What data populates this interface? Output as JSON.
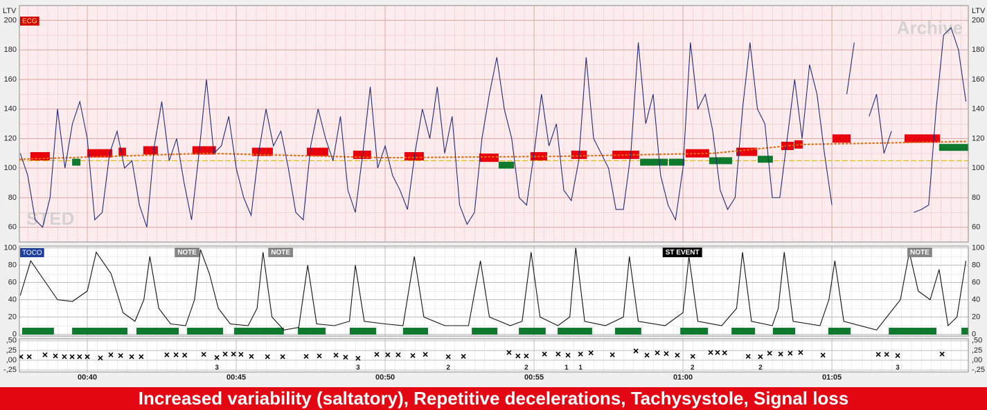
{
  "chart_data": [
    {
      "type": "line",
      "label": "ECG",
      "axis_label": "LTV",
      "watermarks": [
        "Archive",
        "STED"
      ],
      "xlim": [
        37.72,
        69.58
      ],
      "ylim": [
        50,
        210
      ],
      "yticks": [
        60,
        80,
        100,
        120,
        140,
        160,
        180,
        200
      ],
      "color": "#1f2b7a",
      "x": [
        37.75,
        38,
        38.25,
        38.5,
        38.75,
        39,
        39.25,
        39.5,
        39.75,
        40,
        40.25,
        40.5,
        40.75,
        41,
        41.25,
        41.5,
        41.75,
        42,
        42.25,
        42.5,
        42.75,
        43,
        43.25,
        43.5,
        43.75,
        44,
        44.25,
        44.5,
        44.75,
        45,
        45.25,
        45.5,
        45.75,
        46,
        46.25,
        46.5,
        46.75,
        47,
        47.25,
        47.5,
        47.75,
        48,
        48.25,
        48.5,
        48.75,
        49,
        49.25,
        49.5,
        49.75,
        50,
        50.25,
        50.5,
        50.75,
        51,
        51.25,
        51.5,
        51.75,
        52,
        52.25,
        52.5,
        52.75,
        53,
        53.25,
        53.5,
        53.75,
        54,
        54.25,
        54.5,
        54.75,
        55,
        55.25,
        55.5,
        55.75,
        56,
        56.25,
        56.5,
        56.75,
        57,
        57.25,
        57.5,
        57.75,
        58,
        58.25,
        58.5,
        58.75,
        59,
        59.25,
        59.5,
        59.75,
        60,
        60.25,
        60.5,
        60.75,
        61,
        61.25,
        61.5,
        61.75,
        62,
        62.25,
        62.5,
        62.75,
        63,
        63.25,
        63.5,
        63.75,
        64,
        64.25,
        64.5,
        64.75,
        65,
        65.25,
        65.5,
        65.75,
        66,
        66.25,
        66.5,
        66.75,
        67,
        67.25,
        67.5,
        67.75,
        68,
        68.25,
        68.5,
        68.75,
        69,
        69.25,
        69.5
      ],
      "values": [
        110,
        95,
        65,
        60,
        80,
        140,
        100,
        130,
        145,
        120,
        65,
        70,
        110,
        125,
        100,
        105,
        75,
        60,
        115,
        145,
        105,
        120,
        90,
        65,
        110,
        160,
        110,
        115,
        135,
        100,
        80,
        68,
        110,
        140,
        115,
        125,
        100,
        70,
        65,
        115,
        140,
        120,
        105,
        135,
        85,
        70,
        110,
        155,
        100,
        115,
        95,
        85,
        72,
        110,
        140,
        120,
        155,
        110,
        135,
        75,
        62,
        70,
        120,
        150,
        175,
        140,
        120,
        80,
        75,
        110,
        150,
        115,
        130,
        85,
        78,
        105,
        175,
        120,
        110,
        100,
        72,
        72,
        110,
        185,
        130,
        150,
        95,
        75,
        65,
        100,
        185,
        140,
        150,
        125,
        85,
        72,
        80,
        140,
        185,
        140,
        130,
        80,
        80,
        120,
        160,
        120,
        170,
        150,
        110,
        75,
        null,
        150,
        185,
        null,
        135,
        150,
        110,
        125,
        null,
        null,
        70,
        72,
        75,
        140,
        190,
        195,
        180,
        145
      ],
      "baseline": {
        "color": "#e36c0a",
        "x": [
          37.75,
          44,
          50,
          56,
          61,
          64,
          69.5
        ],
        "values": [
          106,
          110,
          107,
          108,
          110,
          116,
          118
        ]
      },
      "reference_line": {
        "value": 105,
        "color": "#e6b800"
      },
      "red_bars": {
        "color": "#e8000d",
        "start": [
          38.09,
          40.0,
          41.05,
          41.88,
          43.53,
          45.53,
          47.37,
          48.93,
          50.65,
          53.16,
          54.88,
          56.25,
          57.63,
          60.09,
          61.79,
          63.3,
          63.74,
          65.02,
          67.44
        ],
        "end": [
          38.74,
          40.84,
          41.3,
          42.37,
          44.32,
          46.23,
          48.09,
          49.53,
          51.3,
          53.81,
          55.44,
          56.77,
          58.53,
          60.88,
          62.49,
          63.72,
          64.02,
          65.63,
          68.63
        ],
        "level": [
          108,
          110,
          111,
          112,
          112,
          111,
          111,
          109,
          108,
          107,
          108,
          109,
          109,
          110,
          111,
          115,
          116,
          120,
          120
        ]
      },
      "green_bars": {
        "color": "#0f7a2e",
        "start": [
          39.49,
          53.81,
          58.56,
          59.53,
          60.88,
          62.51,
          68.6
        ],
        "end": [
          39.77,
          54.33,
          59.49,
          60.05,
          61.65,
          63.02,
          69.58
        ],
        "level": [
          104,
          102,
          104,
          104,
          105,
          106,
          114
        ]
      }
    },
    {
      "type": "line",
      "label": "TOCO",
      "xlim": [
        37.72,
        69.58
      ],
      "ylim": [
        -2,
        102
      ],
      "yticks": [
        0,
        20,
        40,
        60,
        80,
        100
      ],
      "color": "#111111",
      "x": [
        37.75,
        38.1,
        38.6,
        39.0,
        39.5,
        40.0,
        40.3,
        40.8,
        41.2,
        41.6,
        41.9,
        42.1,
        42.4,
        42.8,
        43.3,
        43.6,
        43.8,
        44.1,
        44.4,
        44.8,
        45.4,
        45.7,
        45.9,
        46.2,
        46.6,
        47.1,
        47.4,
        47.7,
        48.3,
        48.8,
        49.0,
        49.3,
        50.0,
        50.6,
        50.98,
        51.3,
        52.0,
        52.8,
        53.2,
        53.5,
        54.2,
        54.6,
        54.9,
        55.2,
        55.8,
        56.2,
        56.4,
        56.7,
        57.4,
        58.0,
        58.2,
        58.5,
        59.4,
        60.0,
        60.2,
        60.5,
        61.3,
        61.8,
        62.0,
        62.3,
        63.0,
        63.2,
        63.4,
        63.7,
        64.6,
        64.9,
        65.1,
        65.4,
        66.5,
        67.3,
        67.6,
        67.9,
        68.3,
        68.6,
        68.9,
        69.2,
        69.5
      ],
      "values": [
        45,
        85,
        60,
        40,
        38,
        50,
        95,
        70,
        25,
        15,
        40,
        90,
        30,
        12,
        10,
        40,
        98,
        70,
        30,
        12,
        10,
        30,
        95,
        20,
        5,
        8,
        80,
        12,
        10,
        15,
        80,
        15,
        12,
        10,
        90,
        20,
        10,
        10,
        85,
        20,
        10,
        15,
        95,
        20,
        10,
        20,
        100,
        15,
        10,
        20,
        90,
        15,
        10,
        25,
        90,
        15,
        10,
        30,
        95,
        15,
        10,
        30,
        95,
        15,
        10,
        40,
        85,
        15,
        5,
        40,
        95,
        50,
        40,
        75,
        10,
        20,
        85
      ],
      "contraction_bars": {
        "color": "#0f7a2e",
        "start": [
          37.81,
          39.49,
          41.65,
          43.35,
          44.93,
          47.07,
          48.81,
          50.6,
          52.91,
          54.49,
          55.79,
          57.72,
          59.91,
          61.63,
          63.02,
          64.88,
          66.91,
          69.35
        ],
        "end": [
          38.88,
          41.35,
          43.07,
          44.56,
          46.6,
          48.0,
          49.7,
          51.44,
          53.77,
          55.39,
          56.95,
          58.6,
          60.84,
          62.42,
          63.77,
          65.63,
          68.51,
          69.58
        ]
      },
      "annotations": {
        "x": [
          43.35,
          46.49,
          59.98,
          67.95
        ],
        "labels": [
          "NOTE",
          "NOTE",
          "ST EVENT",
          "NOTE"
        ],
        "colors": [
          "#858585",
          "#858585",
          "#000000",
          "#858585"
        ]
      }
    },
    {
      "type": "scatter",
      "xlim": [
        37.72,
        69.58
      ],
      "ylim": [
        -0.3,
        0.55
      ],
      "yticks": [
        {
          "value": 0.5,
          "label": ",50"
        },
        {
          "value": 0.25,
          "label": ",25"
        },
        {
          "value": 0,
          "label": ",00"
        },
        {
          "value": -0.25,
          "label": "-,25"
        }
      ],
      "xticks": [
        {
          "value": 40,
          "label": "00:40"
        },
        {
          "value": 45,
          "label": "00:45"
        },
        {
          "value": 50,
          "label": "00:50"
        },
        {
          "value": 55,
          "label": "00:55"
        },
        {
          "value": 60,
          "label": "01:00"
        },
        {
          "value": 65,
          "label": "01:05"
        }
      ],
      "color": "#000000",
      "x": [
        37.77,
        38.05,
        38.58,
        38.93,
        39.23,
        39.49,
        39.74,
        40.0,
        40.44,
        40.79,
        41.12,
        41.49,
        41.81,
        42.67,
        42.98,
        43.27,
        43.91,
        44.35,
        44.63,
        44.91,
        45.16,
        45.51,
        46.05,
        46.56,
        47.35,
        47.79,
        48.35,
        48.67,
        49.09,
        49.72,
        50.09,
        50.44,
        50.93,
        51.35,
        52.12,
        52.63,
        54.16,
        54.46,
        54.74,
        55.35,
        55.81,
        56.14,
        56.56,
        56.91,
        57.63,
        58.42,
        58.79,
        59.14,
        59.44,
        59.81,
        60.33,
        60.93,
        61.16,
        61.4,
        62.19,
        62.6,
        62.91,
        63.28,
        63.6,
        63.95,
        64.7,
        66.56,
        66.84,
        67.21,
        68.7
      ],
      "values": [
        0.09,
        0.09,
        0.14,
        0.11,
        0.09,
        0.09,
        0.09,
        0.09,
        0.06,
        0.14,
        0.12,
        0.09,
        0.09,
        0.14,
        0.14,
        0.13,
        0.15,
        0.07,
        0.16,
        0.16,
        0.15,
        0.1,
        0.09,
        0.09,
        0.1,
        0.11,
        0.13,
        0.08,
        0.05,
        0.15,
        0.14,
        0.14,
        0.12,
        0.15,
        0.09,
        0.1,
        0.2,
        0.11,
        0.11,
        0.16,
        0.16,
        0.13,
        0.16,
        0.19,
        0.14,
        0.24,
        0.13,
        0.19,
        0.17,
        0.13,
        0.1,
        0.2,
        0.2,
        0.19,
        0.1,
        0.09,
        0.18,
        0.16,
        0.18,
        0.2,
        0.13,
        0.15,
        0.15,
        0.12,
        0.16
      ],
      "counts": {
        "x": [
          44.35,
          49.09,
          52.12,
          54.74,
          56.09,
          56.56,
          60.32,
          62.6,
          67.21
        ],
        "values": [
          3,
          3,
          2,
          2,
          1,
          1,
          2,
          2,
          3
        ]
      }
    }
  ],
  "banner": "Increased variability (saltatory), Repetitive decelerations, Tachysystole, Signal loss"
}
